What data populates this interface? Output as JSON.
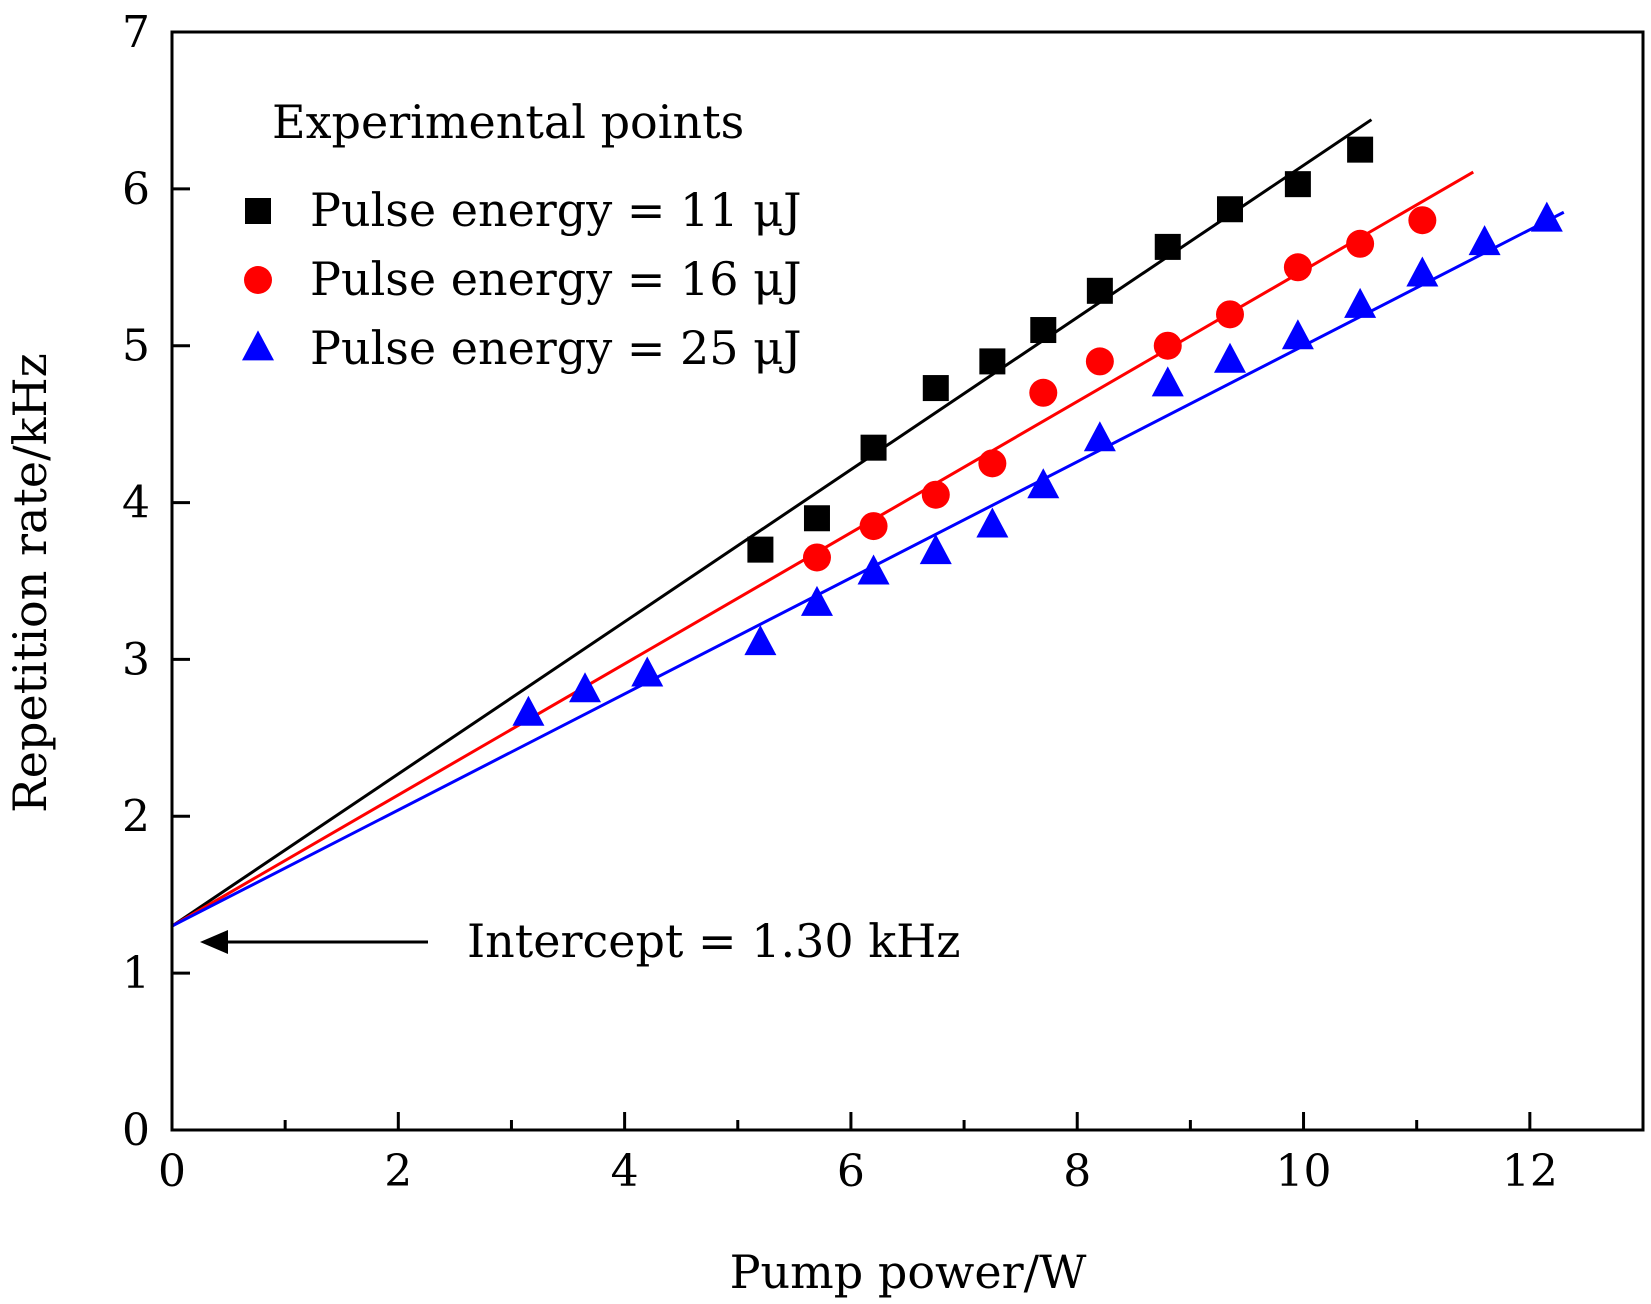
{
  "chart_data": {
    "type": "scatter",
    "title": "",
    "xlabel": "Pump power/W",
    "ylabel": "Repetition rate/kHz",
    "xlim": [
      0,
      13
    ],
    "ylim": [
      0,
      7
    ],
    "xticks": [
      0,
      2,
      4,
      6,
      8,
      10,
      12
    ],
    "xticks_minor": [
      1,
      3,
      5,
      7,
      9,
      11
    ],
    "yticks": [
      0,
      1,
      2,
      3,
      4,
      5,
      6,
      7
    ],
    "legend_title": "Experimental points",
    "legend_position": "top-left",
    "series": [
      {
        "name": "Pulse energy = 11 μJ",
        "marker": "square",
        "color": "#000000",
        "x": [
          5.2,
          5.7,
          6.2,
          6.75,
          7.25,
          7.7,
          8.2,
          8.8,
          9.35,
          9.95,
          10.5
        ],
        "y": [
          3.7,
          3.9,
          4.35,
          4.73,
          4.9,
          5.1,
          5.35,
          5.63,
          5.87,
          6.03,
          6.25
        ],
        "fit": {
          "intercept": 1.3,
          "slope": 0.485,
          "x_end": 10.6
        }
      },
      {
        "name": "Pulse energy = 16 μJ",
        "marker": "circle",
        "color": "#ff0000",
        "x": [
          5.7,
          6.2,
          6.75,
          7.25,
          7.7,
          8.2,
          8.8,
          9.35,
          9.95,
          10.5,
          11.05
        ],
        "y": [
          3.65,
          3.85,
          4.05,
          4.25,
          4.7,
          4.9,
          5.0,
          5.2,
          5.5,
          5.65,
          5.8
        ],
        "fit": {
          "intercept": 1.3,
          "slope": 0.418,
          "x_end": 11.5
        }
      },
      {
        "name": "Pulse energy = 25 μJ",
        "marker": "triangle",
        "color": "#0000ff",
        "x": [
          3.15,
          3.65,
          4.2,
          5.2,
          5.7,
          6.2,
          6.75,
          7.25,
          7.7,
          8.2,
          8.8,
          9.35,
          9.95,
          10.5,
          11.05,
          11.6,
          12.15
        ],
        "y": [
          2.65,
          2.8,
          2.9,
          3.1,
          3.35,
          3.55,
          3.68,
          3.85,
          4.1,
          4.4,
          4.75,
          4.9,
          5.05,
          5.25,
          5.45,
          5.65,
          5.8
        ],
        "fit": {
          "intercept": 1.3,
          "slope": 0.37,
          "x_end": 12.3
        }
      }
    ],
    "annotation": {
      "text": "Intercept = 1.30 kHz",
      "arrow_target": [
        0,
        1.2
      ]
    }
  }
}
